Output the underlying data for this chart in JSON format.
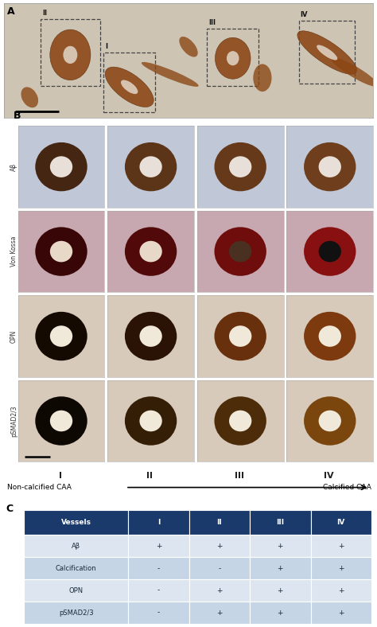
{
  "panel_A_label": "A",
  "panel_B_label": "B",
  "panel_C_label": "C",
  "panel_A_bg": "#cec4b4",
  "row_labels": [
    "Aβ",
    "Von Kossa",
    "OPN",
    "pSMAD2/3"
  ],
  "col_labels": [
    "I",
    "II",
    "III",
    "IV"
  ],
  "arrow_left": "Non-calcified CAA",
  "arrow_right": "Calcified CAA",
  "table_header_bg": "#1a3a6b",
  "table_header_text": "#ffffff",
  "table_row_even_bg": "#c5d5e5",
  "table_row_odd_bg": "#dde6f0",
  "table_text_color": "#1a2a3a",
  "table_col_headers": [
    "Vessels",
    "I",
    "II",
    "III",
    "IV"
  ],
  "table_rows": [
    {
      "label": "Aβ",
      "values": [
        "+",
        "+",
        "+",
        "+"
      ]
    },
    {
      "label": "Calcification",
      "values": [
        "-",
        "-",
        "+",
        "+"
      ]
    },
    {
      "label": "OPN",
      "values": [
        "-",
        "+",
        "+",
        "+"
      ]
    },
    {
      "label": "pSMAD2/3",
      "values": [
        "-",
        "+",
        "+",
        "+"
      ]
    }
  ],
  "row_bg_alternating": [
    "#dde6f0",
    "#c5d5e5",
    "#dde6f0",
    "#c5d5e5"
  ],
  "panel_B_rows": {
    "Aβ": {
      "bg": "#c0c8d8",
      "wall_color": "#7b4520",
      "lumen_color": "#e8e0d8",
      "intensities": [
        0.55,
        0.75,
        0.82,
        0.9
      ]
    },
    "Von Kossa": {
      "bg": "#c8a8b0",
      "wall_color": "#8b1010",
      "lumen_color": "#e8d8c8",
      "intensities": [
        0.4,
        0.58,
        0.8,
        0.98
      ],
      "lumen_dark": [
        false,
        false,
        true,
        true
      ]
    },
    "OPN": {
      "bg": "#d8caba",
      "wall_color": "#8b4010",
      "lumen_color": "#f0e8d8",
      "intensities": [
        0.15,
        0.3,
        0.75,
        0.9
      ]
    },
    "pSMAD2/3": {
      "bg": "#d8caba",
      "wall_color": "#8b5010",
      "lumen_color": "#f0e8d8",
      "intensities": [
        0.1,
        0.38,
        0.55,
        0.88
      ]
    }
  }
}
